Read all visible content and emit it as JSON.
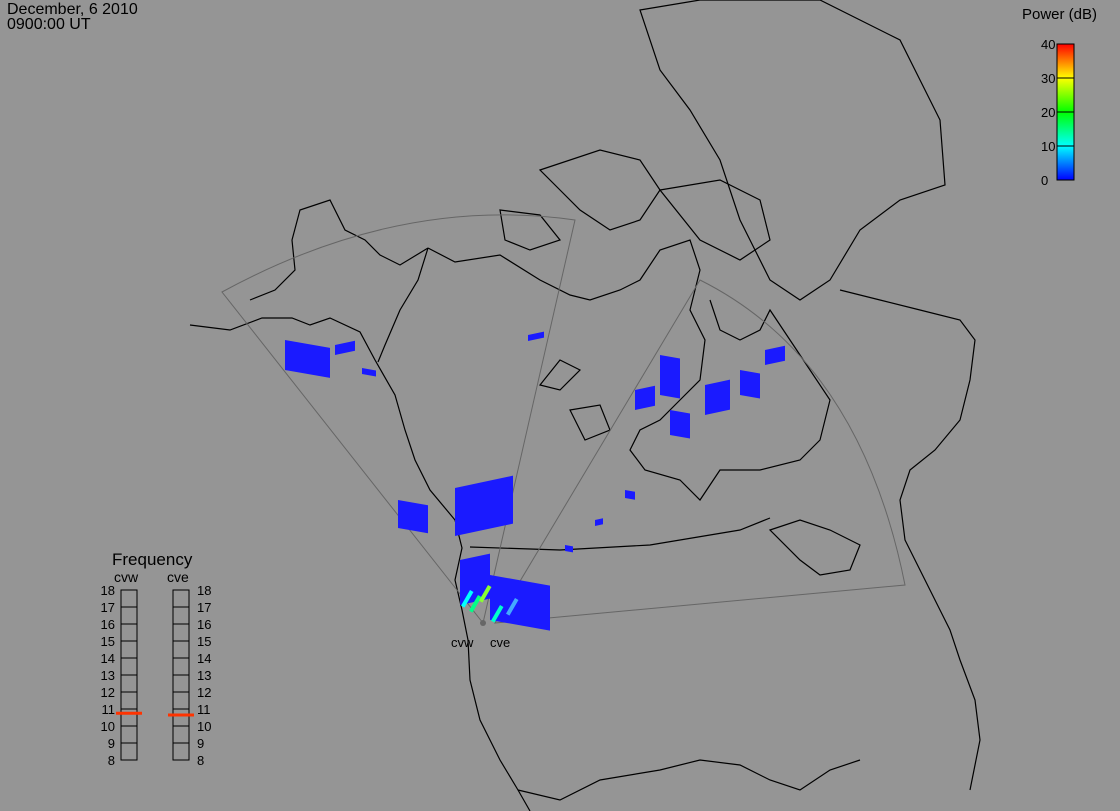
{
  "header": {
    "date": "December, 6 2010",
    "time": "0900:00 UT"
  },
  "power_scale": {
    "title": "Power (dB)",
    "ticks": [
      "40",
      "30",
      "20",
      "10",
      "0"
    ],
    "range": [
      0,
      40
    ],
    "colors": [
      "#0000ff",
      "#00ffff",
      "#00ff00",
      "#ffff00",
      "#ff0000"
    ]
  },
  "frequency_panel": {
    "title": "Frequency",
    "ticks": [
      "18",
      "17",
      "16",
      "15",
      "14",
      "13",
      "12",
      "11",
      "10",
      "9",
      "8"
    ],
    "range_mhz": [
      8,
      18
    ],
    "radars": [
      {
        "name": "cvw",
        "frequency_mhz": 10.75
      },
      {
        "name": "cve",
        "frequency_mhz": 10.65
      }
    ],
    "marker_color": "#ff3300"
  },
  "sites": [
    {
      "label": "cvw"
    },
    {
      "label": "cve"
    }
  ],
  "colors": {
    "background": "#959595",
    "coastline": "#000000",
    "fov": "#666666"
  }
}
